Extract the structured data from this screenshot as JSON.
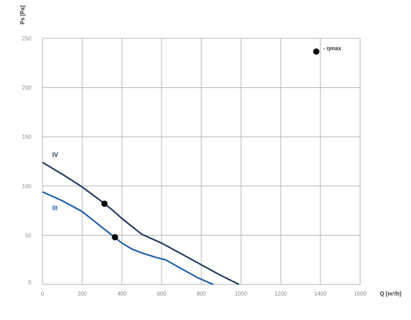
{
  "chart_data": {
    "type": "line",
    "xlabel": "Q [m³/h]",
    "ylabel": "Ps [Pa]",
    "xlim": [
      0,
      1600
    ],
    "ylim": [
      0,
      250
    ],
    "xticks": [
      "0",
      "200",
      "400",
      "600",
      "800",
      "1000",
      "1200",
      "1400",
      "1600"
    ],
    "yticks": [
      "0",
      "50",
      "100",
      "150",
      "200",
      "250"
    ],
    "grid": true,
    "series": [
      {
        "name": "IV",
        "color": "#1f3a5f",
        "x": [
          0,
          100,
          200,
          300,
          350,
          400,
          450,
          500,
          600,
          700,
          800,
          900,
          990
        ],
        "y": [
          124,
          112,
          99,
          84,
          76,
          67,
          59,
          51,
          42,
          31,
          20,
          9,
          0
        ]
      },
      {
        "name": "III",
        "color": "#1f5ea8",
        "x": [
          0,
          100,
          200,
          300,
          350,
          400,
          450,
          500,
          580,
          620,
          700,
          780,
          860
        ],
        "y": [
          94,
          85,
          74,
          58,
          50,
          42,
          36,
          32,
          27,
          25,
          16,
          7,
          0
        ]
      }
    ],
    "markers": [
      {
        "series": "IV",
        "x": 312,
        "y": 82
      },
      {
        "series": "III",
        "x": 365,
        "y": 48
      }
    ],
    "legend": {
      "marker": "filled-circle",
      "label": "- ηmax",
      "placement": "top-right"
    }
  }
}
